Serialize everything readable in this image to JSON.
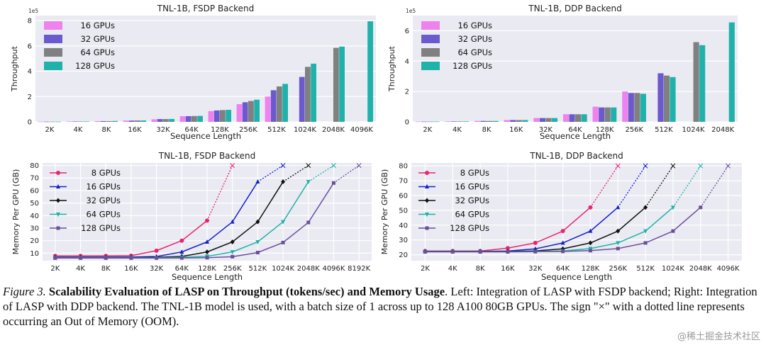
{
  "caption": {
    "label": "Figure 3.",
    "bold": "Scalability Evaluation of LASP on Throughput (tokens/sec) and Memory Usage",
    "rest": ". Left: Integration of LASP with FSDP backend; Right: Integration of LASP with DDP backend. The TNL-1B model is used, with a batch size of 1 across up to 128 A100 80GB GPUs. The sign \"×\" with a dotted line represents occurring an Out of Memory (OOM)."
  },
  "watermark": "@稀土掘金技术社区",
  "colors": {
    "plot_bg": "#eaeaf2",
    "grid": "#ffffff",
    "c16": "#ee82ee",
    "c32": "#6a5acd",
    "c64": "#808080",
    "c128": "#20b2aa",
    "m8": "#e8266e",
    "m16": "#1420cc",
    "m32": "#111111",
    "m64": "#1fb3a8",
    "m128": "#6b4f9c"
  },
  "chart_data": [
    {
      "type": "bar",
      "title": "TNL-1B, FSDP Backend",
      "xlabel": "Sequence Length",
      "ylabel": "Throughput",
      "yscale_label": "1e5",
      "yticks": [
        "0",
        "2",
        "4",
        "6",
        "8"
      ],
      "ylim": [
        0,
        8.4
      ],
      "legend_position": "top-left",
      "categories": [
        "2K",
        "4K",
        "8K",
        "16K",
        "32K",
        "64K",
        "128K",
        "256K",
        "512K",
        "1024K",
        "2048K",
        "4096K"
      ],
      "series": [
        {
          "name": "16 GPUs",
          "color": "#ee82ee",
          "values": [
            0.02,
            0.03,
            0.06,
            0.1,
            0.2,
            0.45,
            0.85,
            1.4,
            2.0,
            null,
            null,
            null
          ]
        },
        {
          "name": "32 GPUs",
          "color": "#6a5acd",
          "values": [
            0.02,
            0.03,
            0.06,
            0.1,
            0.22,
            0.45,
            0.9,
            1.55,
            2.5,
            3.55,
            null,
            null
          ]
        },
        {
          "name": "64 GPUs",
          "color": "#808080",
          "values": [
            0.02,
            0.03,
            0.06,
            0.11,
            0.22,
            0.46,
            0.93,
            1.65,
            2.8,
            4.35,
            5.85,
            null
          ]
        },
        {
          "name": "128 GPUs",
          "color": "#20b2aa",
          "values": [
            0.02,
            0.03,
            0.07,
            0.11,
            0.23,
            0.47,
            0.95,
            1.75,
            3.0,
            4.6,
            5.95,
            7.95
          ]
        }
      ]
    },
    {
      "type": "bar",
      "title": "TNL-1B, DDP Backend",
      "xlabel": "Sequence Length",
      "ylabel": "Throughput",
      "yscale_label": "1e5",
      "yticks": [
        "0",
        "2",
        "4",
        "6"
      ],
      "ylim": [
        0,
        7
      ],
      "legend_position": "top-left",
      "categories": [
        "2K",
        "4K",
        "8K",
        "16K",
        "32K",
        "64K",
        "128K",
        "256K",
        "512K",
        "1024K",
        "2048K"
      ],
      "series": [
        {
          "name": "16 GPUs",
          "color": "#ee82ee",
          "values": [
            0.02,
            0.03,
            0.06,
            0.12,
            0.25,
            0.5,
            1.0,
            2.0,
            null,
            null,
            null
          ]
        },
        {
          "name": "32 GPUs",
          "color": "#6a5acd",
          "values": [
            0.02,
            0.03,
            0.06,
            0.12,
            0.25,
            0.5,
            0.95,
            1.9,
            3.2,
            null,
            null
          ]
        },
        {
          "name": "64 GPUs",
          "color": "#808080",
          "values": [
            0.02,
            0.03,
            0.06,
            0.12,
            0.25,
            0.5,
            0.95,
            1.9,
            3.05,
            5.25,
            null
          ]
        },
        {
          "name": "128 GPUs",
          "color": "#20b2aa",
          "values": [
            0.02,
            0.03,
            0.06,
            0.12,
            0.25,
            0.5,
            0.95,
            1.85,
            2.95,
            5.05,
            6.55
          ]
        }
      ]
    },
    {
      "type": "line",
      "title": "TNL-1B, FSDP Backend",
      "xlabel": "Sequence Length",
      "ylabel": "Memory Per GPU (GB)",
      "yticks": [
        "10",
        "20",
        "30",
        "40",
        "50",
        "60",
        "70",
        "80"
      ],
      "ylim": [
        4,
        82
      ],
      "legend_position": "top-left",
      "categories": [
        "2K",
        "4K",
        "8K",
        "16K",
        "32K",
        "64K",
        "128K",
        "256K",
        "512K",
        "1024K",
        "2048K",
        "4096K",
        "8192K"
      ],
      "series": [
        {
          "name": "8 GPUs",
          "color": "#e8266e",
          "marker": "circle",
          "values": [
            7.8,
            7.8,
            7.8,
            8.0,
            12,
            20,
            36,
            null,
            null,
            null,
            null,
            null,
            null
          ],
          "oom_index": 7
        },
        {
          "name": "16 GPUs",
          "color": "#1420cc",
          "marker": "triangle",
          "values": [
            6.8,
            6.8,
            6.8,
            6.9,
            7.3,
            11,
            19,
            35,
            67,
            null,
            null,
            null,
            null
          ],
          "oom_index": 9
        },
        {
          "name": "32 GPUs",
          "color": "#111111",
          "marker": "diamond",
          "values": [
            6.5,
            6.5,
            6.5,
            6.5,
            6.7,
            7.4,
            11,
            19,
            35,
            67,
            null,
            null,
            null
          ],
          "oom_index": 10
        },
        {
          "name": "64 GPUs",
          "color": "#1fb3a8",
          "marker": "triangle-down",
          "values": [
            6.3,
            6.3,
            6.3,
            6.3,
            6.3,
            6.7,
            7.5,
            11,
            19,
            35,
            67,
            null,
            null
          ],
          "oom_index": 11
        },
        {
          "name": "128 GPUs",
          "color": "#6b4f9c",
          "marker": "square",
          "values": [
            6.1,
            6.1,
            6.1,
            6.1,
            6.1,
            6.2,
            6.4,
            7.2,
            10.5,
            18.5,
            34.5,
            66,
            null
          ],
          "oom_index": 12
        }
      ]
    },
    {
      "type": "line",
      "title": "TNL-1B, DDP Backend",
      "xlabel": "Sequence Length",
      "ylabel": "Memory Per GPU (GB)",
      "yticks": [
        "20",
        "30",
        "40",
        "50",
        "60",
        "70",
        "80"
      ],
      "ylim": [
        16,
        82
      ],
      "legend_position": "top-left",
      "categories": [
        "2K",
        "4K",
        "8K",
        "16K",
        "32K",
        "64K",
        "128K",
        "256K",
        "512K",
        "1024K",
        "2048K",
        "4096K"
      ],
      "series": [
        {
          "name": "8 GPUs",
          "color": "#e8266e",
          "marker": "circle",
          "values": [
            22.5,
            22.5,
            22.5,
            24.5,
            28,
            36,
            52,
            null,
            null,
            null,
            null,
            null
          ],
          "oom_index": 7
        },
        {
          "name": "16 GPUs",
          "color": "#1420cc",
          "marker": "triangle",
          "values": [
            22.3,
            22.3,
            22.3,
            22.5,
            24,
            28,
            36,
            52,
            null,
            null,
            null,
            null
          ],
          "oom_index": 8
        },
        {
          "name": "32 GPUs",
          "color": "#111111",
          "marker": "diamond",
          "values": [
            22.2,
            22.2,
            22.2,
            22.3,
            22.6,
            24,
            28,
            36,
            52,
            null,
            null,
            null
          ],
          "oom_index": 9
        },
        {
          "name": "64 GPUs",
          "color": "#1fb3a8",
          "marker": "triangle-down",
          "values": [
            22.1,
            22.1,
            22.1,
            22.1,
            22.3,
            22.6,
            24.2,
            28,
            36,
            52,
            null,
            null
          ],
          "oom_index": 10
        },
        {
          "name": "128 GPUs",
          "color": "#6b4f9c",
          "marker": "square",
          "values": [
            22.0,
            22.0,
            22.0,
            22.0,
            22.1,
            22.3,
            22.8,
            24.2,
            28,
            36,
            52,
            null
          ],
          "oom_index": 11
        }
      ]
    }
  ]
}
